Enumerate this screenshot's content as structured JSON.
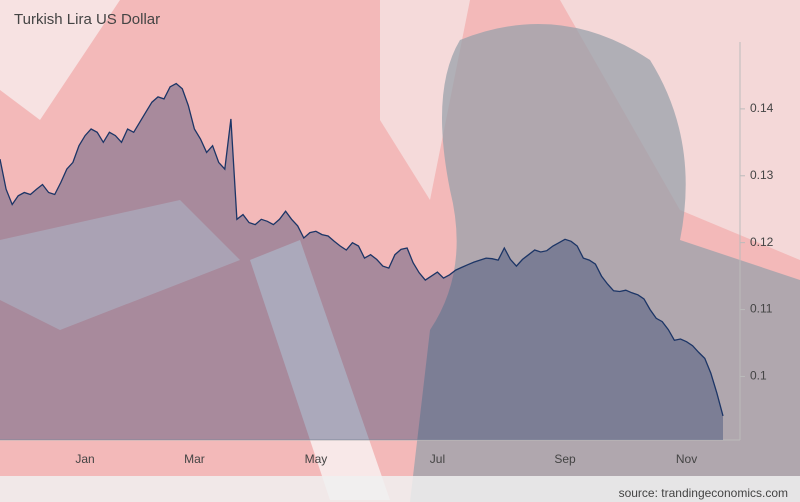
{
  "chart_data": {
    "type": "area",
    "title": "Turkish Lira US Dollar",
    "source": "source: trandingeconomics.com",
    "categories": [
      null,
      null,
      null,
      null,
      null,
      null,
      null,
      null,
      null,
      null,
      null,
      null,
      null,
      null,
      "Jan",
      null,
      null,
      null,
      null,
      null,
      null,
      null,
      null,
      null,
      null,
      null,
      null,
      null,
      null,
      null,
      null,
      null,
      "Mar",
      null,
      null,
      null,
      null,
      null,
      null,
      null,
      null,
      null,
      null,
      null,
      null,
      null,
      null,
      null,
      null,
      null,
      null,
      null,
      "May",
      null,
      null,
      null,
      null,
      null,
      null,
      null,
      null,
      null,
      null,
      null,
      null,
      null,
      null,
      null,
      null,
      null,
      null,
      null,
      "Jul",
      null,
      null,
      null,
      null,
      null,
      null,
      null,
      null,
      null,
      null,
      null,
      null,
      null,
      null,
      null,
      null,
      null,
      null,
      null,
      null,
      "Sep",
      null,
      null,
      null,
      null,
      null,
      null,
      null,
      null,
      null,
      null,
      null,
      null,
      null,
      null,
      null,
      null,
      null,
      null,
      null,
      "Nov",
      null,
      null,
      null,
      null,
      null,
      null
    ],
    "values": [
      0.1325,
      0.128,
      0.1257,
      0.127,
      0.1275,
      0.1272,
      0.128,
      0.1287,
      0.1275,
      0.1272,
      0.129,
      0.131,
      0.132,
      0.1345,
      0.136,
      0.137,
      0.1365,
      0.135,
      0.1365,
      0.136,
      0.135,
      0.137,
      0.1365,
      0.138,
      0.1395,
      0.141,
      0.1418,
      0.1415,
      0.1433,
      0.1438,
      0.143,
      0.1405,
      0.137,
      0.1355,
      0.1335,
      0.1345,
      0.132,
      0.131,
      0.1385,
      0.1235,
      0.1242,
      0.123,
      0.1227,
      0.1235,
      0.1232,
      0.1227,
      0.1235,
      0.1247,
      0.1235,
      0.1225,
      0.1207,
      0.1215,
      0.1217,
      0.1212,
      0.121,
      0.1202,
      0.1195,
      0.1189,
      0.12,
      0.1195,
      0.1177,
      0.1182,
      0.1175,
      0.1165,
      0.1162,
      0.1182,
      0.119,
      0.1192,
      0.117,
      0.1155,
      0.1144,
      0.115,
      0.1156,
      0.1147,
      0.1152,
      0.1159,
      0.1163,
      0.1167,
      0.1171,
      0.1174,
      0.1177,
      0.1176,
      0.1174,
      0.1192,
      0.1175,
      0.1165,
      0.1175,
      0.1182,
      0.1189,
      0.1186,
      0.1188,
      0.1195,
      0.12,
      0.1205,
      0.1202,
      0.1195,
      0.1177,
      0.1174,
      0.1168,
      0.115,
      0.1138,
      0.1128,
      0.1127,
      0.1129,
      0.1125,
      0.1122,
      0.1116,
      0.11,
      0.1087,
      0.1082,
      0.107,
      0.1054,
      0.1056,
      0.1052,
      0.1046,
      0.1036,
      0.1027,
      0.1005,
      0.0975,
      0.0941
    ],
    "color": "#1c3566",
    "ylim": [
      0.0905,
      0.15
    ],
    "yticks": [
      0.1,
      0.11,
      0.12,
      0.13,
      0.14
    ]
  }
}
